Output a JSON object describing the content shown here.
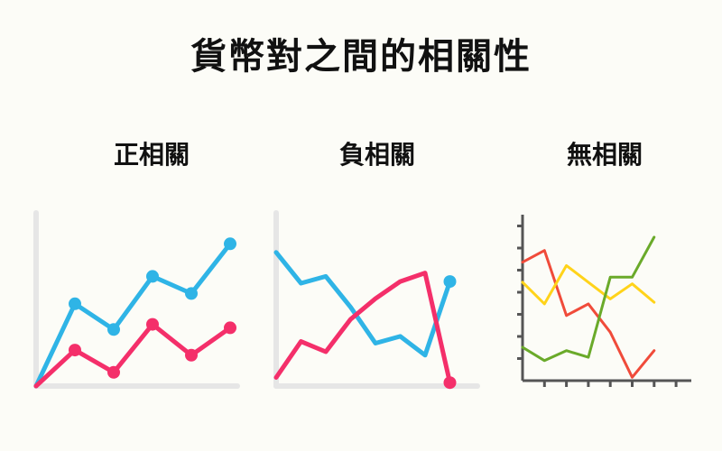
{
  "title": "貨幣對之間的相關性",
  "panels": [
    {
      "id": "positive",
      "label": "正相關",
      "axis_color": "#e6e6e6",
      "series": [
        {
          "color": "#2fb4e6",
          "markers": true,
          "points": [
            [
              0,
              0
            ],
            [
              1,
              0.48
            ],
            [
              2,
              0.33
            ],
            [
              3,
              0.64
            ],
            [
              4,
              0.54
            ],
            [
              5,
              0.83
            ]
          ]
        },
        {
          "color": "#f42f6a",
          "markers": true,
          "points": [
            [
              0,
              0
            ],
            [
              1,
              0.21
            ],
            [
              2,
              0.08
            ],
            [
              3,
              0.36
            ],
            [
              4,
              0.18
            ],
            [
              5,
              0.34
            ]
          ]
        }
      ]
    },
    {
      "id": "negative",
      "label": "負相關",
      "axis_color": "#e6e6e6",
      "series": [
        {
          "color": "#2fb4e6",
          "markers_end_only": true,
          "points": [
            [
              0,
              0.78
            ],
            [
              1,
              0.6
            ],
            [
              2,
              0.64
            ],
            [
              3,
              0.46
            ],
            [
              4,
              0.25
            ],
            [
              5,
              0.29
            ],
            [
              6,
              0.18
            ],
            [
              7,
              0.61
            ]
          ]
        },
        {
          "color": "#f42f6a",
          "markers_end_only": true,
          "points": [
            [
              0,
              0.05
            ],
            [
              1,
              0.26
            ],
            [
              2,
              0.2
            ],
            [
              3,
              0.39
            ],
            [
              4,
              0.51
            ],
            [
              5,
              0.61
            ],
            [
              6,
              0.66
            ],
            [
              7,
              0.02
            ]
          ]
        }
      ]
    },
    {
      "id": "none",
      "label": "無相關",
      "axis_color": "#555555",
      "series": [
        {
          "color": "#f04b3a",
          "points": [
            [
              0,
              0.71
            ],
            [
              1,
              0.78
            ],
            [
              2,
              0.39
            ],
            [
              3,
              0.46
            ],
            [
              4,
              0.29
            ],
            [
              5,
              0.02
            ],
            [
              6,
              0.18
            ]
          ]
        },
        {
          "color": "#ffd31a",
          "points": [
            [
              0,
              0.59
            ],
            [
              1,
              0.46
            ],
            [
              2,
              0.69
            ],
            [
              3,
              0.59
            ],
            [
              4,
              0.49
            ],
            [
              5,
              0.58
            ],
            [
              6,
              0.47
            ]
          ]
        },
        {
          "color": "#6aaa2a",
          "points": [
            [
              0,
              0.2
            ],
            [
              1,
              0.12
            ],
            [
              2,
              0.18
            ],
            [
              3,
              0.14
            ],
            [
              4,
              0.62
            ],
            [
              5,
              0.62
            ],
            [
              6,
              0.86
            ]
          ]
        }
      ]
    }
  ]
}
